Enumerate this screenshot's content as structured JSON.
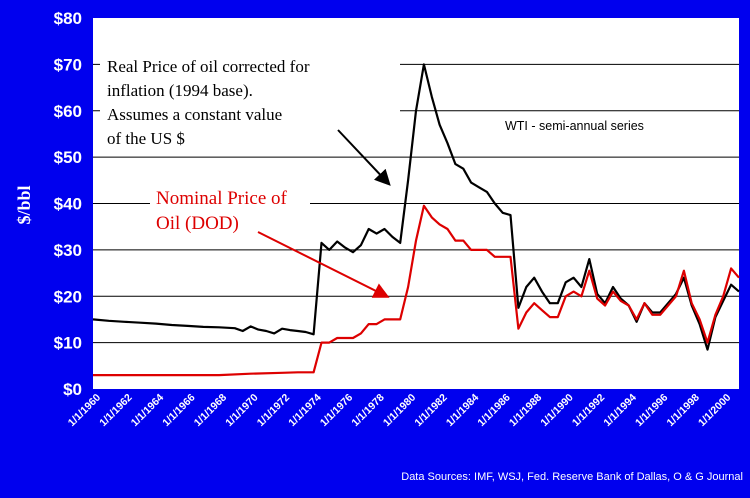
{
  "chart_data": {
    "type": "line",
    "ylabel": "$/bbl",
    "ylim": [
      0,
      80
    ],
    "yticks": [
      "$0",
      "$10",
      "$20",
      "$30",
      "$40",
      "$50",
      "$60",
      "$70",
      "$80"
    ],
    "xlim": [
      1960,
      2001
    ],
    "xticks": [
      "1/1/1960",
      "1/1/1962",
      "1/1/1964",
      "1/1/1966",
      "1/1/1968",
      "1/1/1970",
      "1/1/1972",
      "1/1/1974",
      "1/1/1976",
      "1/1/1978",
      "1/1/1980",
      "1/1/1982",
      "1/1/1984",
      "1/1/1986",
      "1/1/1988",
      "1/1/1990",
      "1/1/1992",
      "1/1/1994",
      "1/1/1996",
      "1/1/1998",
      "1/1/2000"
    ],
    "grid": true,
    "series": [
      {
        "color": "#000000",
        "x": [
          1960,
          1961,
          1962,
          1963,
          1964,
          1965,
          1966,
          1967,
          1968,
          1969,
          1969.5,
          1970,
          1970.5,
          1971,
          1971.5,
          1972,
          1972.5,
          1973,
          1973.5,
          1974,
          1974.5,
          1975,
          1975.5,
          1976,
          1976.5,
          1977,
          1977.5,
          1978,
          1978.5,
          1979,
          1979.5,
          1980,
          1980.5,
          1981,
          1981.5,
          1982,
          1982.5,
          1983,
          1983.5,
          1984,
          1984.5,
          1985,
          1985.5,
          1986,
          1986.5,
          1987,
          1987.5,
          1988,
          1988.5,
          1989,
          1989.5,
          1990,
          1990.5,
          1991,
          1991.5,
          1992,
          1992.5,
          1993,
          1993.5,
          1994,
          1994.5,
          1995,
          1995.5,
          1996,
          1996.5,
          1997,
          1997.5,
          1998,
          1998.5,
          1999,
          1999.5,
          2000,
          2000.5,
          2001
        ],
        "values": [
          15,
          14.7,
          14.5,
          14.3,
          14.1,
          13.8,
          13.6,
          13.4,
          13.3,
          13.1,
          12.5,
          13.5,
          12.8,
          12.5,
          12,
          13,
          12.7,
          12.5,
          12.3,
          11.8,
          31.5,
          30,
          31.8,
          30.5,
          29.5,
          31,
          34.5,
          33.5,
          34.5,
          32.8,
          31.5,
          45,
          60,
          70,
          63,
          57,
          53,
          48.5,
          47.5,
          44.5,
          43.5,
          42.5,
          40,
          38,
          37.5,
          17.5,
          22,
          24,
          21,
          18.5,
          18.5,
          23,
          24,
          22,
          28,
          20.5,
          18.5,
          22,
          19.5,
          18,
          14.5,
          18.5,
          16.5,
          16.5,
          18.5,
          20.5,
          24,
          18,
          14,
          8.5,
          15.5,
          19,
          22.5,
          21
        ]
      },
      {
        "color": "#dd0000",
        "x": [
          1960,
          1968,
          1970,
          1972,
          1973,
          1974,
          1974.5,
          1975,
          1975.5,
          1976,
          1976.5,
          1977,
          1977.5,
          1978,
          1978.5,
          1979,
          1979.5,
          1980,
          1980.5,
          1981,
          1981.5,
          1982,
          1982.5,
          1983,
          1983.5,
          1984,
          1984.5,
          1985,
          1985.5,
          1986,
          1986.5,
          1987,
          1987.5,
          1988,
          1988.5,
          1989,
          1989.5,
          1990,
          1990.5,
          1991,
          1991.5,
          1992,
          1992.5,
          1993,
          1993.5,
          1994,
          1994.5,
          1995,
          1995.5,
          1996,
          1996.5,
          1997,
          1997.5,
          1998,
          1998.5,
          1999,
          1999.5,
          2000,
          2000.5,
          2001
        ],
        "values": [
          3,
          3,
          3.3,
          3.5,
          3.6,
          3.6,
          10,
          10,
          11,
          11,
          11,
          12,
          14,
          14,
          15,
          15,
          15,
          22,
          32,
          39.5,
          37,
          35.5,
          34.5,
          32,
          32,
          30,
          30,
          30,
          28.5,
          28.5,
          28.5,
          13,
          16.5,
          18.5,
          17,
          15.5,
          15.5,
          20,
          21,
          20,
          25.5,
          19.5,
          18,
          21,
          19,
          18,
          15,
          18.5,
          16,
          16,
          18,
          20,
          25.5,
          18.5,
          15,
          10,
          16,
          20,
          26,
          24
        ]
      }
    ],
    "annotations": {
      "real_price_lines": [
        "Real Price of oil corrected for",
        "inflation (1994 base).",
        "Assumes a constant value",
        "of the US $"
      ],
      "nominal_price_lines": [
        "Nominal Price of",
        "Oil  (DOD)"
      ],
      "series_note": "WTI - semi-annual series"
    },
    "source_note": "Data Sources: IMF, WSJ, Fed. Reserve Bank of Dallas, O & G Journal",
    "colors": {
      "background": "#0000ee",
      "plot_area": "#ffffff",
      "real_price": "#000000",
      "nominal_price": "#dd0000",
      "text_on_background": "#ffffff"
    }
  }
}
